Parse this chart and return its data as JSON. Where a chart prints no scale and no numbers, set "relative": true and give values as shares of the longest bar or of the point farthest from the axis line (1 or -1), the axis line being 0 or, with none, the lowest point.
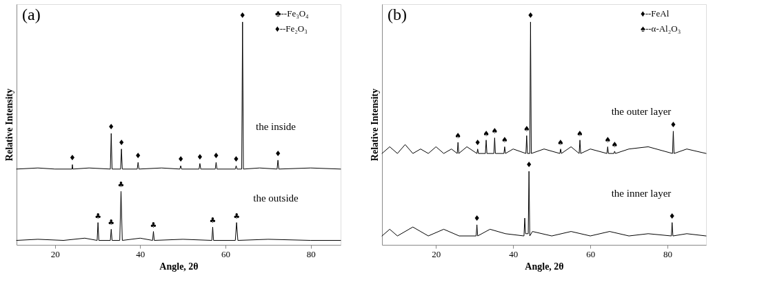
{
  "chart_data": [
    {
      "type": "line",
      "title": "(a)",
      "xlabel": "Angle, 2θ",
      "ylabel": "Relative Intensity",
      "relative": true,
      "xlim": [
        11,
        87
      ],
      "xticks": [
        20,
        40,
        60,
        80
      ],
      "series": [
        {
          "name": "the inside",
          "color": "#000000",
          "x": [
            11,
            16,
            20,
            24,
            24.1,
            24.2,
            28,
            33,
            33.2,
            33.4,
            35.4,
            35.6,
            35.8,
            39.3,
            39.5,
            39.7,
            45,
            49.3,
            49.5,
            49.7,
            53.8,
            54,
            54.2,
            57.6,
            57.8,
            58,
            62.3,
            62.5,
            62.7,
            63.8,
            64,
            64.2,
            68,
            72.1,
            72.3,
            72.5,
            80,
            87
          ],
          "values": [
            0.34,
            0.345,
            0.34,
            0.34,
            0.36,
            0.34,
            0.345,
            0.34,
            0.5,
            0.34,
            0.34,
            0.43,
            0.34,
            0.34,
            0.37,
            0.34,
            0.345,
            0.34,
            0.355,
            0.34,
            0.34,
            0.365,
            0.34,
            0.34,
            0.37,
            0.34,
            0.34,
            0.355,
            0.34,
            0.34,
            1.0,
            0.34,
            0.345,
            0.34,
            0.38,
            0.34,
            0.345,
            0.34
          ]
        },
        {
          "name": "the outside",
          "color": "#000000",
          "x": [
            11,
            16,
            22,
            27,
            29.9,
            30.1,
            30.3,
            33,
            33.2,
            33.4,
            35.2,
            35.5,
            35.8,
            40,
            42.9,
            43.1,
            43.3,
            50,
            56.8,
            57,
            57.2,
            62.3,
            62.6,
            62.9,
            70,
            80,
            87
          ],
          "values": [
            0.02,
            0.025,
            0.02,
            0.03,
            0.02,
            0.1,
            0.02,
            0.02,
            0.07,
            0.02,
            0.02,
            0.24,
            0.02,
            0.03,
            0.02,
            0.06,
            0.02,
            0.025,
            0.02,
            0.08,
            0.02,
            0.02,
            0.1,
            0.02,
            0.025,
            0.02,
            0.02
          ]
        }
      ],
      "annotations": [
        "♣--Fe₃O₄",
        "♦--Fe₂O₃",
        {
          "text": "♦",
          "x": 24.1,
          "y": 0.36
        },
        {
          "text": "♦",
          "x": 33.2,
          "y": 0.5
        },
        {
          "text": "♦",
          "x": 35.6,
          "y": 0.43
        },
        {
          "text": "♦",
          "x": 39.5,
          "y": 0.37
        },
        {
          "text": "♦",
          "x": 49.5,
          "y": 0.355
        },
        {
          "text": "♦",
          "x": 54,
          "y": 0.365
        },
        {
          "text": "♦",
          "x": 57.8,
          "y": 0.37
        },
        {
          "text": "♦",
          "x": 62.5,
          "y": 0.355
        },
        {
          "text": "♦",
          "x": 64,
          "y": 1.0
        },
        {
          "text": "♦",
          "x": 72.3,
          "y": 0.38
        },
        {
          "text": "♣",
          "x": 30.1,
          "y": 0.1
        },
        {
          "text": "♣",
          "x": 33.2,
          "y": 0.07
        },
        {
          "text": "♣",
          "x": 35.5,
          "y": 0.24
        },
        {
          "text": "♣",
          "x": 43.1,
          "y": 0.06
        },
        {
          "text": "♣",
          "x": 57,
          "y": 0.08
        },
        {
          "text": "♣",
          "x": 62.6,
          "y": 0.1
        }
      ]
    },
    {
      "type": "line",
      "title": "(b)",
      "xlabel": "Angle, 2θ",
      "ylabel": "Relative Intensity",
      "relative": true,
      "xlim": [
        6,
        90
      ],
      "xticks": [
        20,
        40,
        60,
        80
      ],
      "series": [
        {
          "name": "the outer layer",
          "color": "#000000",
          "x": [
            6,
            8,
            10,
            12,
            14,
            16,
            18,
            20,
            22,
            24,
            25.5,
            25.7,
            25.9,
            28,
            30.6,
            30.8,
            31,
            32.8,
            33,
            33.2,
            35,
            35.2,
            35.4,
            37.6,
            37.8,
            38,
            40,
            43.3,
            43.5,
            43.7,
            44.3,
            44.5,
            44.7,
            48,
            52.1,
            52.3,
            52.5,
            55,
            57.1,
            57.3,
            57.5,
            60,
            64.3,
            64.5,
            64.7,
            66.1,
            66.3,
            66.5,
            70,
            75,
            81.3,
            81.5,
            81.7,
            85,
            90
          ],
          "values": [
            0.41,
            0.44,
            0.41,
            0.45,
            0.41,
            0.43,
            0.41,
            0.44,
            0.41,
            0.43,
            0.41,
            0.46,
            0.41,
            0.44,
            0.41,
            0.43,
            0.41,
            0.41,
            0.47,
            0.41,
            0.41,
            0.48,
            0.41,
            0.41,
            0.44,
            0.41,
            0.43,
            0.41,
            0.49,
            0.41,
            0.41,
            1.0,
            0.41,
            0.43,
            0.41,
            0.43,
            0.41,
            0.44,
            0.41,
            0.47,
            0.41,
            0.43,
            0.41,
            0.44,
            0.41,
            0.41,
            0.42,
            0.41,
            0.43,
            0.44,
            0.41,
            0.51,
            0.41,
            0.43,
            0.41
          ]
        },
        {
          "name": "the inner layer",
          "color": "#000000",
          "x": [
            6,
            8,
            10,
            14,
            18,
            22,
            26,
            30.4,
            30.6,
            30.8,
            34,
            38,
            42.8,
            43,
            43.2,
            43.9,
            44.1,
            44.3,
            45,
            50,
            55,
            60,
            65,
            70,
            75,
            81,
            81.2,
            81.4,
            85,
            90
          ],
          "values": [
            0.04,
            0.07,
            0.04,
            0.08,
            0.04,
            0.07,
            0.04,
            0.04,
            0.09,
            0.04,
            0.07,
            0.05,
            0.04,
            0.12,
            0.05,
            0.05,
            0.33,
            0.04,
            0.06,
            0.04,
            0.06,
            0.04,
            0.06,
            0.04,
            0.05,
            0.04,
            0.1,
            0.04,
            0.05,
            0.04
          ]
        }
      ],
      "annotations": [
        "♦--FeAl",
        "♠--α-Al₂O₃",
        {
          "text": "♠",
          "x": 25.7,
          "y": 0.46
        },
        {
          "text": "♦",
          "x": 30.8,
          "y": 0.43
        },
        {
          "text": "♠",
          "x": 33,
          "y": 0.47
        },
        {
          "text": "♠",
          "x": 35.2,
          "y": 0.48
        },
        {
          "text": "♠",
          "x": 37.8,
          "y": 0.44
        },
        {
          "text": "♠",
          "x": 43.5,
          "y": 0.49
        },
        {
          "text": "♦",
          "x": 44.5,
          "y": 1.0
        },
        {
          "text": "♠",
          "x": 52.3,
          "y": 0.43
        },
        {
          "text": "♠",
          "x": 57.3,
          "y": 0.47
        },
        {
          "text": "♠",
          "x": 64.5,
          "y": 0.44
        },
        {
          "text": "♠",
          "x": 66.3,
          "y": 0.42
        },
        {
          "text": "♦",
          "x": 81.5,
          "y": 0.51
        },
        {
          "text": "♦",
          "x": 30.6,
          "y": 0.09
        },
        {
          "text": "♦",
          "x": 44.1,
          "y": 0.33
        },
        {
          "text": "♦",
          "x": 81.2,
          "y": 0.1
        }
      ]
    }
  ]
}
